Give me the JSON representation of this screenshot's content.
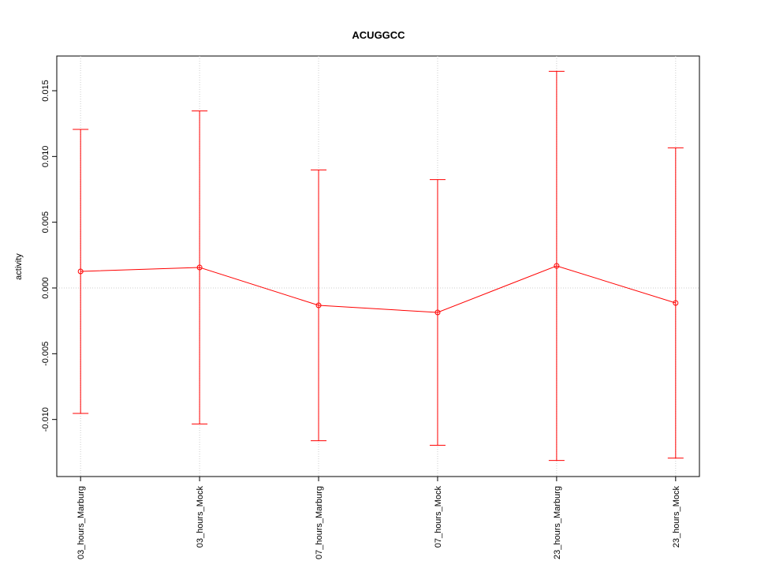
{
  "chart_data": {
    "type": "line",
    "title": "ACUGGCC",
    "y_label": "activity",
    "categories": [
      "03_hours_Marburg",
      "03_hours_Mock",
      "07_hours_Marburg",
      "07_hours_Mock",
      "23_hours_Marburg",
      "23_hours_Mock"
    ],
    "series": [
      {
        "color": "#ff0000",
        "values": [
          0.00126,
          0.00156,
          -0.00132,
          -0.00186,
          0.00168,
          -0.00114
        ],
        "errors": [
          0.0108,
          0.0119,
          0.0103,
          0.0101,
          0.0148,
          0.0118
        ]
      }
    ],
    "ylim": [
      -0.01434,
      0.01764
    ],
    "yticks": [
      {
        "value": -0.01,
        "label": "-0.010"
      },
      -0.005,
      {
        "value": 0,
        "label": "0.000"
      },
      0.005,
      {
        "value": 0.01,
        "label": "0.010"
      },
      0.015
    ],
    "grid": "x",
    "hline": 0
  }
}
